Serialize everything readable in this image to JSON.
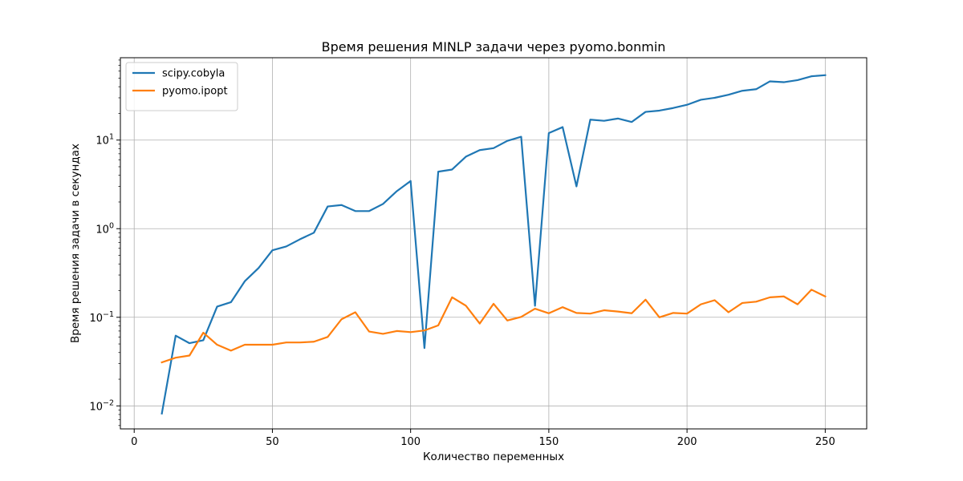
{
  "chart_data": {
    "type": "line",
    "title": "Время решения MINLP задачи через pyomo.bonmin",
    "xlabel": "Количество переменных",
    "ylabel": "Время решения задачи в секундах",
    "xlim": [
      -5,
      265
    ],
    "ylim": [
      0.0055,
      85
    ],
    "yscale": "log",
    "grid": true,
    "legend_position": "top-left",
    "x_ticks": [
      {
        "value": 0,
        "label": "0"
      },
      {
        "value": 50,
        "label": "50"
      },
      {
        "value": 100,
        "label": "100"
      },
      {
        "value": 150,
        "label": "150"
      },
      {
        "value": 200,
        "label": "200"
      },
      {
        "value": 250,
        "label": "250"
      }
    ],
    "y_ticks": [
      {
        "value": 0.01,
        "base": "10",
        "exp": "−2"
      },
      {
        "value": 0.1,
        "base": "10",
        "exp": "−1"
      },
      {
        "value": 1,
        "base": "10",
        "exp": "0"
      },
      {
        "value": 10,
        "base": "10",
        "exp": "1"
      }
    ],
    "x": [
      10,
      15,
      20,
      25,
      30,
      35,
      40,
      45,
      50,
      55,
      60,
      65,
      70,
      75,
      80,
      85,
      90,
      95,
      100,
      105,
      110,
      115,
      120,
      125,
      130,
      135,
      140,
      145,
      150,
      155,
      160,
      165,
      170,
      175,
      180,
      185,
      190,
      195,
      200,
      205,
      210,
      215,
      220,
      225,
      230,
      235,
      240,
      245,
      250
    ],
    "series": [
      {
        "name": "scipy.cobyla",
        "color": "#1f77b4",
        "values": [
          0.0082,
          0.062,
          0.051,
          0.055,
          0.132,
          0.148,
          0.255,
          0.36,
          0.57,
          0.63,
          0.76,
          0.9,
          1.78,
          1.85,
          1.58,
          1.58,
          1.9,
          2.65,
          3.45,
          0.045,
          4.4,
          4.65,
          6.5,
          7.7,
          8.1,
          9.8,
          10.9,
          0.135,
          12.0,
          14.0,
          3.0,
          17.0,
          16.5,
          17.5,
          16.0,
          20.8,
          21.5,
          23.0,
          25.0,
          28.5,
          30.0,
          32.5,
          36.0,
          37.5,
          46.0,
          45.0,
          47.5,
          52.5,
          54.0
        ]
      },
      {
        "name": "pyomo.ipopt",
        "color": "#ff7f0e",
        "values": [
          0.031,
          0.035,
          0.037,
          0.067,
          0.049,
          0.042,
          0.049,
          0.049,
          0.049,
          0.052,
          0.052,
          0.053,
          0.06,
          0.095,
          0.114,
          0.069,
          0.065,
          0.07,
          0.068,
          0.071,
          0.081,
          0.168,
          0.135,
          0.085,
          0.142,
          0.092,
          0.101,
          0.125,
          0.111,
          0.13,
          0.112,
          0.11,
          0.12,
          0.116,
          0.111,
          0.158,
          0.1,
          0.112,
          0.11,
          0.14,
          0.156,
          0.114,
          0.145,
          0.15,
          0.168,
          0.172,
          0.14,
          0.205,
          0.172
        ]
      }
    ]
  }
}
